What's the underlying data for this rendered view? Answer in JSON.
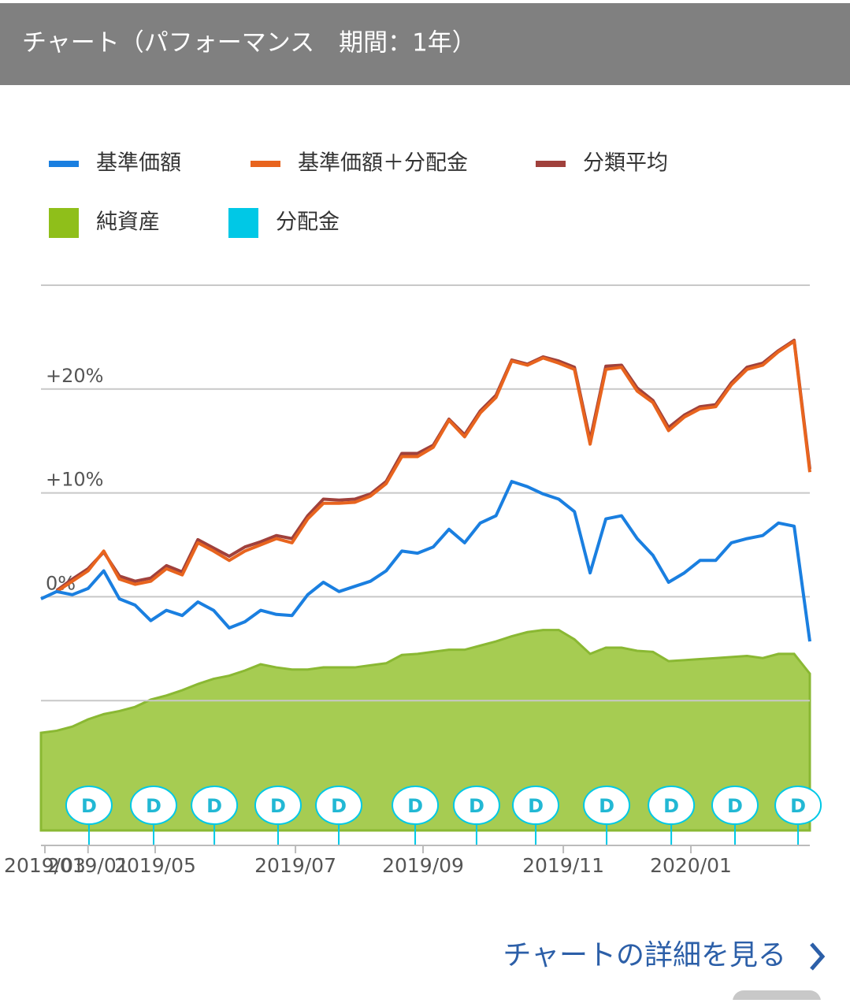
{
  "chart_data": {
    "type": "line",
    "title": "チャート（パフォーマンス　期間：1年）",
    "xlim": [
      0,
      49
    ],
    "ylim": [
      -22.5,
      30
    ],
    "yticks": [
      {
        "value": 20,
        "label": "+20%"
      },
      {
        "value": 10,
        "label": "+10%"
      },
      {
        "value": 0,
        "label": "0%"
      }
    ],
    "gridlines": [
      30,
      20,
      10,
      0,
      -10
    ],
    "xticks": [
      {
        "value": 0.25,
        "label": "2019/03"
      },
      {
        "value": 3.0,
        "label": "2019/01"
      },
      {
        "value": 7.28,
        "label": "2019/05"
      },
      {
        "value": 16.22,
        "label": "2019/07"
      },
      {
        "value": 24.35,
        "label": "2019/09"
      },
      {
        "value": 33.29,
        "label": "2019/11"
      },
      {
        "value": 41.42,
        "label": "2020/01"
      }
    ],
    "series": [
      {
        "name": "基準価額",
        "color": "#1a7fe0",
        "style": "line",
        "values": [
          -0.2,
          0.5,
          0.2,
          0.8,
          2.5,
          -0.2,
          -0.8,
          -2.3,
          -1.3,
          -1.8,
          -0.5,
          -1.3,
          -3.0,
          -2.4,
          -1.3,
          -1.7,
          -1.8,
          0.2,
          1.4,
          0.5,
          1.0,
          1.5,
          2.5,
          4.4,
          4.2,
          4.8,
          6.5,
          5.2,
          7.1,
          7.8,
          11.1,
          10.6,
          9.9,
          9.4,
          8.2,
          2.3,
          7.5,
          7.8,
          5.6,
          4.0,
          1.4,
          2.3,
          3.5,
          3.5,
          5.2,
          5.6,
          5.9,
          7.1,
          6.8,
          -4.3
        ]
      },
      {
        "name": "基準価額＋分配金",
        "color": "#e8641e",
        "style": "line",
        "values": [
          null,
          0.5,
          1.5,
          2.5,
          4.4,
          1.7,
          1.2,
          1.5,
          2.7,
          2.1,
          5.2,
          4.4,
          3.5,
          4.4,
          5.0,
          5.6,
          5.2,
          7.5,
          9.0,
          9.0,
          9.1,
          9.7,
          10.9,
          13.5,
          13.5,
          14.4,
          17.0,
          15.4,
          17.7,
          19.2,
          22.7,
          22.3,
          23.0,
          22.5,
          21.9,
          14.7,
          21.9,
          22.1,
          19.8,
          18.7,
          16.0,
          17.3,
          18.1,
          18.3,
          20.4,
          21.9,
          22.3,
          23.6,
          24.6,
          12.0
        ]
      },
      {
        "name": "分類平均",
        "color": "#a0413c",
        "style": "line",
        "values": [
          null,
          0.6,
          1.7,
          2.7,
          4.3,
          2.0,
          1.5,
          1.8,
          3.0,
          2.4,
          5.5,
          4.7,
          3.9,
          4.8,
          5.3,
          5.9,
          5.6,
          7.8,
          9.4,
          9.3,
          9.4,
          9.9,
          11.1,
          13.8,
          13.8,
          14.6,
          17.1,
          15.6,
          17.9,
          19.4,
          22.8,
          22.4,
          23.1,
          22.7,
          22.1,
          15.1,
          22.2,
          22.3,
          20.1,
          18.9,
          16.3,
          17.5,
          18.3,
          18.5,
          20.6,
          22.1,
          22.5,
          23.7,
          24.7,
          12.3
        ]
      },
      {
        "name": "純資産",
        "color": "#a6cc52",
        "style": "area",
        "values": [
          -13.1,
          -12.9,
          -12.5,
          -11.8,
          -11.3,
          -11.0,
          -10.6,
          -9.9,
          -9.5,
          -9.0,
          -8.4,
          -7.9,
          -7.6,
          -7.1,
          -6.5,
          -6.8,
          -7.0,
          -7.0,
          -6.8,
          -6.8,
          -6.8,
          -6.6,
          -6.4,
          -5.6,
          -5.5,
          -5.3,
          -5.1,
          -5.1,
          -4.7,
          -4.3,
          -3.8,
          -3.4,
          -3.2,
          -3.2,
          -4.1,
          -5.5,
          -4.9,
          -4.9,
          -5.2,
          -5.3,
          -6.2,
          -6.1,
          -6.0,
          -5.9,
          -5.8,
          -5.7,
          -5.9,
          -5.5,
          -5.5,
          -7.4
        ]
      }
    ],
    "distributions": {
      "name": "分配金",
      "color": "#00c8e6",
      "marker_label": "D",
      "x": [
        3.06,
        7.18,
        11.05,
        15.11,
        18.98,
        23.85,
        27.76,
        31.53,
        36.05,
        40.17,
        44.23,
        48.25
      ]
    }
  },
  "link_text": "チャートの詳細を見る"
}
